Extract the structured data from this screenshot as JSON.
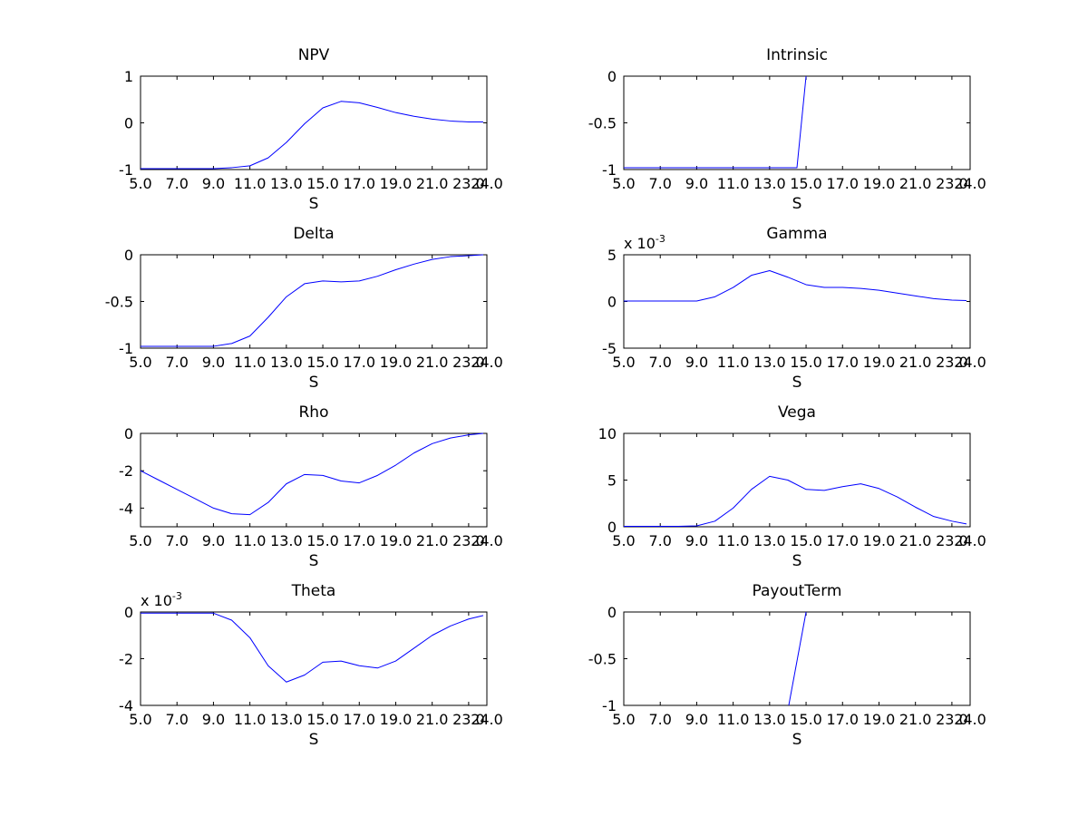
{
  "chart_data": [
    {
      "type": "line",
      "title": "NPV",
      "xlabel": "S",
      "ylabel": "",
      "xlim": [
        5,
        24
      ],
      "ylim": [
        -1,
        1
      ],
      "x_ticks": [
        5,
        7,
        9,
        11,
        13,
        15,
        17,
        19,
        21,
        23,
        24
      ],
      "x_tick_labels": [
        "5.0",
        "7.0",
        "9.0",
        "11.0",
        "13.0",
        "15.0",
        "17.0",
        "19.0",
        "21.0",
        "23.0",
        "24.0"
      ],
      "y_ticks": [
        -1,
        0,
        1
      ],
      "y_tick_labels": [
        "-1",
        "0",
        "1"
      ],
      "line_color": "#0000ff",
      "series": [
        {
          "x": [
            5,
            6,
            7,
            8,
            9,
            10,
            11,
            12,
            13,
            14,
            15,
            16,
            17,
            18,
            19,
            20,
            21,
            22,
            23,
            23.8
          ],
          "values": [
            -0.98,
            -0.98,
            -0.98,
            -0.98,
            -0.98,
            -0.96,
            -0.92,
            -0.75,
            -0.42,
            -0.02,
            0.32,
            0.46,
            0.43,
            0.33,
            0.22,
            0.14,
            0.08,
            0.04,
            0.02,
            0.02
          ]
        }
      ]
    },
    {
      "type": "line",
      "title": "Intrinsic",
      "xlabel": "S",
      "ylabel": "",
      "xlim": [
        5,
        24
      ],
      "ylim": [
        -1,
        0
      ],
      "x_ticks": [
        5,
        7,
        9,
        11,
        13,
        15,
        17,
        19,
        21,
        23,
        24
      ],
      "x_tick_labels": [
        "5.0",
        "7.0",
        "9.0",
        "11.0",
        "13.0",
        "15.0",
        "17.0",
        "19.0",
        "21.0",
        "23.0",
        "24.0"
      ],
      "y_ticks": [
        -1,
        -0.5,
        0
      ],
      "y_tick_labels": [
        "-1",
        "-0.5",
        "0"
      ],
      "line_color": "#0000ff",
      "series": [
        {
          "x": [
            5,
            14.5,
            15
          ],
          "values": [
            -0.98,
            -0.98,
            0
          ]
        }
      ]
    },
    {
      "type": "line",
      "title": "Delta",
      "xlabel": "S",
      "ylabel": "",
      "xlim": [
        5,
        24
      ],
      "ylim": [
        -1,
        0
      ],
      "x_ticks": [
        5,
        7,
        9,
        11,
        13,
        15,
        17,
        19,
        21,
        23,
        24
      ],
      "x_tick_labels": [
        "5.0",
        "7.0",
        "9.0",
        "11.0",
        "13.0",
        "15.0",
        "17.0",
        "19.0",
        "21.0",
        "23.0",
        "24.0"
      ],
      "y_ticks": [
        -1,
        -0.5,
        0
      ],
      "y_tick_labels": [
        "-1",
        "-0.5",
        "0"
      ],
      "line_color": "#0000ff",
      "series": [
        {
          "x": [
            5,
            6,
            7,
            8,
            9,
            10,
            11,
            12,
            13,
            14,
            15,
            16,
            17,
            18,
            19,
            20,
            21,
            22,
            23,
            23.8
          ],
          "values": [
            -0.98,
            -0.98,
            -0.98,
            -0.98,
            -0.98,
            -0.95,
            -0.87,
            -0.67,
            -0.45,
            -0.31,
            -0.28,
            -0.29,
            -0.28,
            -0.23,
            -0.16,
            -0.1,
            -0.05,
            -0.02,
            -0.01,
            0
          ]
        }
      ]
    },
    {
      "type": "line",
      "title": "Gamma",
      "xlabel": "S",
      "ylabel": "",
      "xlim": [
        5,
        24
      ],
      "ylim": [
        -5,
        5
      ],
      "y_multiplier_label": "x 10",
      "y_multiplier_exponent": "-3",
      "x_ticks": [
        5,
        7,
        9,
        11,
        13,
        15,
        17,
        19,
        21,
        23,
        24
      ],
      "x_tick_labels": [
        "5.0",
        "7.0",
        "9.0",
        "11.0",
        "13.0",
        "15.0",
        "17.0",
        "19.0",
        "21.0",
        "23.0",
        "24.0"
      ],
      "y_ticks": [
        -5,
        0,
        5
      ],
      "y_tick_labels": [
        "-5",
        "0",
        "5"
      ],
      "line_color": "#0000ff",
      "series": [
        {
          "x": [
            5,
            6,
            7,
            8,
            9,
            10,
            11,
            12,
            13,
            14,
            15,
            16,
            17,
            18,
            19,
            20,
            21,
            22,
            23,
            23.8
          ],
          "values": [
            0.05,
            0.05,
            0.05,
            0.05,
            0.05,
            0.5,
            1.5,
            2.8,
            3.3,
            2.6,
            1.8,
            1.5,
            1.5,
            1.4,
            1.2,
            0.9,
            0.6,
            0.3,
            0.15,
            0.1
          ]
        }
      ]
    },
    {
      "type": "line",
      "title": "Rho",
      "xlabel": "S",
      "ylabel": "",
      "xlim": [
        5,
        24
      ],
      "ylim": [
        -5,
        0
      ],
      "x_ticks": [
        5,
        7,
        9,
        11,
        13,
        15,
        17,
        19,
        21,
        23,
        24
      ],
      "x_tick_labels": [
        "5.0",
        "7.0",
        "9.0",
        "11.0",
        "13.0",
        "15.0",
        "17.0",
        "19.0",
        "21.0",
        "23.0",
        "24.0"
      ],
      "y_ticks": [
        -4,
        -2,
        0
      ],
      "y_tick_labels": [
        "-4",
        "-2",
        "0"
      ],
      "line_color": "#0000ff",
      "series": [
        {
          "x": [
            5,
            6,
            7,
            8,
            9,
            10,
            11,
            12,
            13,
            14,
            15,
            16,
            17,
            18,
            19,
            20,
            21,
            22,
            23,
            23.8
          ],
          "values": [
            -2.0,
            -2.5,
            -3.0,
            -3.5,
            -4.0,
            -4.3,
            -4.35,
            -3.7,
            -2.7,
            -2.2,
            -2.25,
            -2.55,
            -2.65,
            -2.25,
            -1.7,
            -1.05,
            -0.55,
            -0.25,
            -0.08,
            0
          ]
        }
      ]
    },
    {
      "type": "line",
      "title": "Vega",
      "xlabel": "S",
      "ylabel": "",
      "xlim": [
        5,
        24
      ],
      "ylim": [
        0,
        10
      ],
      "x_ticks": [
        5,
        7,
        9,
        11,
        13,
        15,
        17,
        19,
        21,
        23,
        24
      ],
      "x_tick_labels": [
        "5.0",
        "7.0",
        "9.0",
        "11.0",
        "13.0",
        "15.0",
        "17.0",
        "19.0",
        "21.0",
        "23.0",
        "24.0"
      ],
      "y_ticks": [
        0,
        5,
        10
      ],
      "y_tick_labels": [
        "0",
        "5",
        "10"
      ],
      "line_color": "#0000ff",
      "series": [
        {
          "x": [
            5,
            6,
            7,
            8,
            9,
            10,
            11,
            12,
            13,
            14,
            15,
            16,
            17,
            18,
            19,
            20,
            21,
            22,
            23,
            23.8
          ],
          "values": [
            0.05,
            0.05,
            0.05,
            0.05,
            0.1,
            0.6,
            2.0,
            4.0,
            5.4,
            5.0,
            4.0,
            3.9,
            4.3,
            4.6,
            4.1,
            3.2,
            2.1,
            1.1,
            0.6,
            0.3
          ]
        }
      ]
    },
    {
      "type": "line",
      "title": "Theta",
      "xlabel": "S",
      "ylabel": "",
      "xlim": [
        5,
        24
      ],
      "ylim": [
        -4,
        0
      ],
      "y_multiplier_label": "x 10",
      "y_multiplier_exponent": "-3",
      "x_ticks": [
        5,
        7,
        9,
        11,
        13,
        15,
        17,
        19,
        21,
        23,
        24
      ],
      "x_tick_labels": [
        "5.0",
        "7.0",
        "9.0",
        "11.0",
        "13.0",
        "15.0",
        "17.0",
        "19.0",
        "21.0",
        "23.0",
        "24.0"
      ],
      "y_ticks": [
        -4,
        -2,
        0
      ],
      "y_tick_labels": [
        "-4",
        "-2",
        "0"
      ],
      "line_color": "#0000ff",
      "series": [
        {
          "x": [
            5,
            6,
            7,
            8,
            9,
            10,
            11,
            12,
            13,
            14,
            15,
            16,
            17,
            18,
            19,
            20,
            21,
            22,
            23,
            23.8
          ],
          "values": [
            -0.05,
            -0.05,
            -0.05,
            -0.05,
            -0.05,
            -0.35,
            -1.1,
            -2.3,
            -3.0,
            -2.7,
            -2.15,
            -2.1,
            -2.3,
            -2.4,
            -2.1,
            -1.55,
            -1.0,
            -0.6,
            -0.3,
            -0.15
          ]
        }
      ]
    },
    {
      "type": "line",
      "title": "PayoutTerm",
      "xlabel": "S",
      "ylabel": "",
      "xlim": [
        5,
        24
      ],
      "ylim": [
        -1,
        0
      ],
      "x_ticks": [
        5,
        7,
        9,
        11,
        13,
        15,
        17,
        19,
        21,
        23,
        24
      ],
      "x_tick_labels": [
        "5.0",
        "7.0",
        "9.0",
        "11.0",
        "13.0",
        "15.0",
        "17.0",
        "19.0",
        "21.0",
        "23.0",
        "24.0"
      ],
      "y_ticks": [
        -1,
        -0.5,
        0
      ],
      "y_tick_labels": [
        "-1",
        "-0.5",
        "0"
      ],
      "line_color": "#0000ff",
      "series": [
        {
          "x": [
            14.05,
            15
          ],
          "values": [
            -1,
            0
          ]
        }
      ]
    }
  ]
}
